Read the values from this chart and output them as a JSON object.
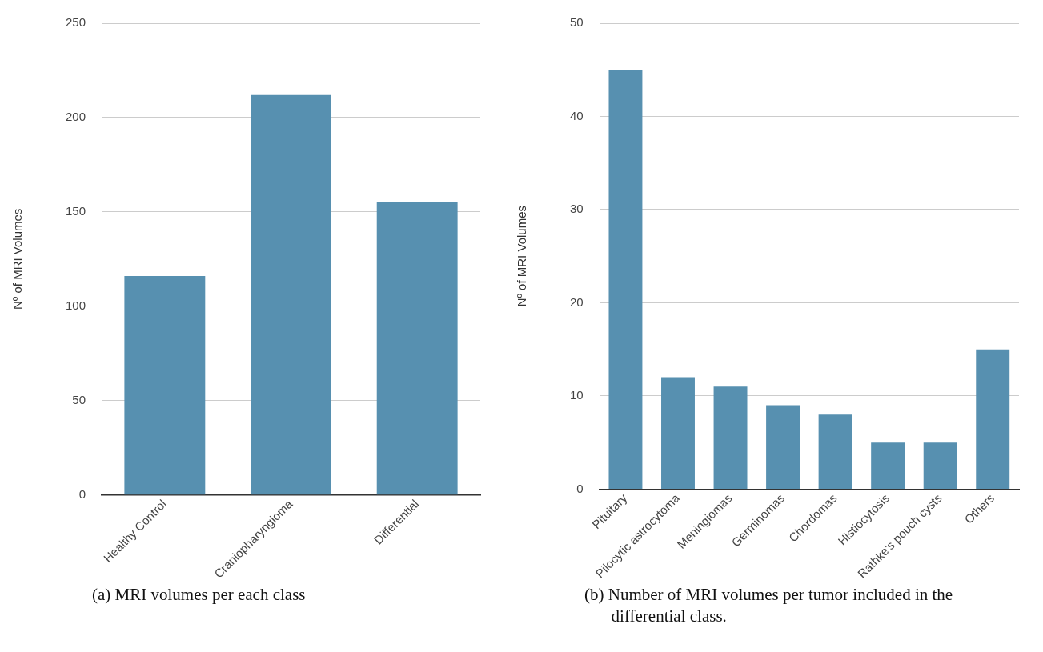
{
  "chart_data": [
    {
      "type": "bar",
      "ylabel": "Nº of MRI Volumes",
      "categories": [
        "Healthy Control",
        "Craniopharyngioma",
        "Differential"
      ],
      "values": [
        116,
        212,
        155
      ],
      "color": "#5790b0",
      "ylim": [
        0,
        250
      ],
      "yticks": [
        0,
        50,
        100,
        150,
        200,
        250
      ],
      "grid": "y",
      "legend": false,
      "annotations": [
        "(a) MRI volumes per each class"
      ]
    },
    {
      "type": "bar",
      "ylabel": "Nº of MRI Volumes",
      "categories": [
        "Pituitary",
        "Pilocytic astrocytoma",
        "Meningiomas",
        "Germinomas",
        "Chordomas",
        "Histiocytosis",
        "Rathke's pouch cysts",
        "Others"
      ],
      "values": [
        45,
        12,
        11,
        9,
        8,
        5,
        5,
        15
      ],
      "color": "#5790b0",
      "ylim": [
        0,
        50
      ],
      "yticks": [
        0,
        10,
        20,
        30,
        40,
        50
      ],
      "grid": "y",
      "legend": false,
      "annotations": [
        "(b) Number of MRI volumes per tumor included in the differential class."
      ]
    }
  ]
}
